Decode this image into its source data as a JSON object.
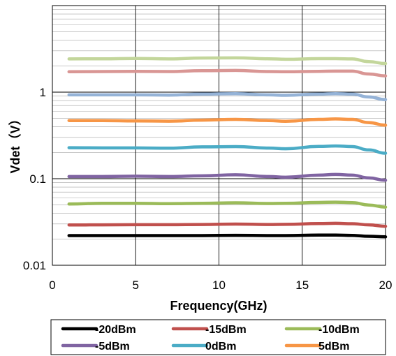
{
  "chart_data": {
    "type": "line",
    "xlabel": "Frequency(GHz)",
    "ylabel": "Vdet（V）",
    "xlim": [
      0,
      20
    ],
    "ylim": [
      0.01,
      10
    ],
    "yscale": "log",
    "x_ticks": [
      "0",
      "5",
      "10",
      "15",
      "20"
    ],
    "y_ticks": [
      "0.01",
      "0.1",
      "1"
    ],
    "grid": true,
    "legend_position": "bottom",
    "x": [
      1,
      3,
      5,
      7,
      9,
      11,
      13,
      14,
      16,
      17,
      18,
      19,
      20
    ],
    "series": [
      {
        "name": "-20dBm",
        "color": "#000000",
        "values": [
          0.022,
          0.022,
          0.022,
          0.022,
          0.022,
          0.0222,
          0.022,
          0.022,
          0.0223,
          0.0223,
          0.0221,
          0.0216,
          0.0213
        ]
      },
      {
        "name": "-15dBm",
        "color": "#c0504d",
        "values": [
          0.0292,
          0.0293,
          0.0294,
          0.0294,
          0.0296,
          0.0299,
          0.0296,
          0.0297,
          0.0303,
          0.0305,
          0.0302,
          0.0293,
          0.0282
        ]
      },
      {
        "name": "-10dBm",
        "color": "#9bbb59",
        "values": [
          0.051,
          0.052,
          0.052,
          0.0515,
          0.052,
          0.0527,
          0.0517,
          0.052,
          0.0532,
          0.0536,
          0.053,
          0.0497,
          0.047
        ]
      },
      {
        "name": "-5dBm",
        "color": "#8064a2",
        "values": [
          0.106,
          0.106,
          0.107,
          0.106,
          0.108,
          0.111,
          0.106,
          0.104,
          0.11,
          0.112,
          0.11,
          0.102,
          0.096
        ]
      },
      {
        "name": "0dBm",
        "color": "#4bacc6",
        "values": [
          0.228,
          0.227,
          0.227,
          0.225,
          0.233,
          0.235,
          0.226,
          0.222,
          0.236,
          0.239,
          0.235,
          0.215,
          0.197
        ]
      },
      {
        "name": "5dBm",
        "color": "#f79646",
        "values": [
          0.47,
          0.47,
          0.465,
          0.462,
          0.475,
          0.485,
          0.47,
          0.46,
          0.485,
          0.49,
          0.485,
          0.445,
          0.415
        ]
      },
      {
        "name": "",
        "color": "#95b3d7",
        "values": [
          0.93,
          0.93,
          0.93,
          0.925,
          0.95,
          0.96,
          0.93,
          0.92,
          0.95,
          0.96,
          0.95,
          0.88,
          0.82
        ]
      },
      {
        "name": "",
        "color": "#d99694",
        "values": [
          1.72,
          1.73,
          1.74,
          1.73,
          1.77,
          1.78,
          1.73,
          1.72,
          1.74,
          1.75,
          1.75,
          1.62,
          1.54
        ]
      },
      {
        "name": "",
        "color": "#c3d69b",
        "values": [
          2.42,
          2.43,
          2.45,
          2.42,
          2.48,
          2.49,
          2.43,
          2.4,
          2.44,
          2.44,
          2.42,
          2.25,
          2.14
        ]
      }
    ]
  }
}
